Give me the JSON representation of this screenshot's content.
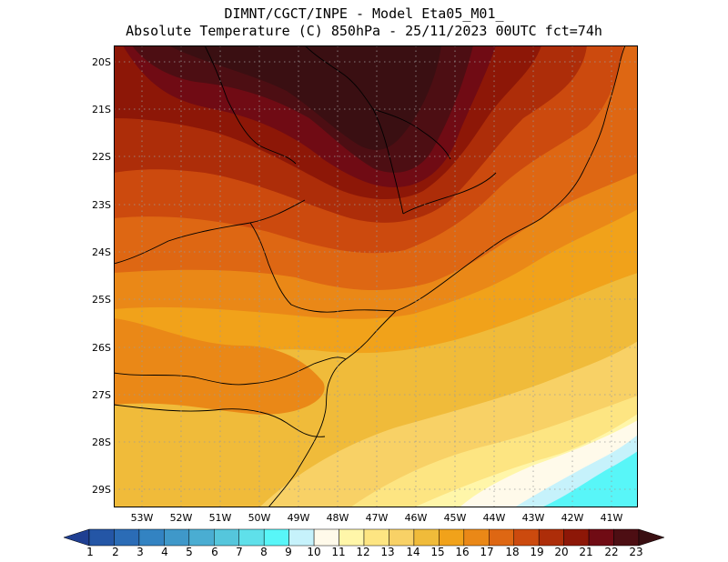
{
  "header": {
    "line1": "DIMNT/CGCT/INPE -  Model Eta05_M01_",
    "line2": "Absolute Temperature (C) 850hPa -  25/11/2023 00UTC fct=74h"
  },
  "map": {
    "lat_labels": [
      "20S",
      "21S",
      "22S",
      "23S",
      "24S",
      "25S",
      "26S",
      "27S",
      "28S",
      "29S"
    ],
    "lon_labels": [
      "53W",
      "52W",
      "51W",
      "50W",
      "49W",
      "48W",
      "47W",
      "46W",
      "45W",
      "44W",
      "43W",
      "42W",
      "41W"
    ],
    "colors": {
      "background": "#f1a21a",
      "coastline": "#000000",
      "grid": "#9a9a9a"
    }
  },
  "colorbar": {
    "labels": [
      "1",
      "2",
      "3",
      "4",
      "5",
      "6",
      "7",
      "8",
      "9",
      "10",
      "11",
      "12",
      "13",
      "14",
      "15",
      "16",
      "17",
      "18",
      "19",
      "20",
      "21",
      "22",
      "23"
    ],
    "colors": [
      "#1f3f92",
      "#2456a6",
      "#2b6cb6",
      "#3383c2",
      "#3f98c9",
      "#4aadd2",
      "#55c6dc",
      "#5fe0ea",
      "#58f6f8",
      "#c6f2fb",
      "#fffaea",
      "#fff6a9",
      "#fde582",
      "#f8d166",
      "#f0bb3a",
      "#f1a21a",
      "#ea8817",
      "#de6713",
      "#cc4a0e",
      "#ad2d09",
      "#8d1707",
      "#700b14",
      "#4d0e13",
      "#3a0f12"
    ]
  }
}
